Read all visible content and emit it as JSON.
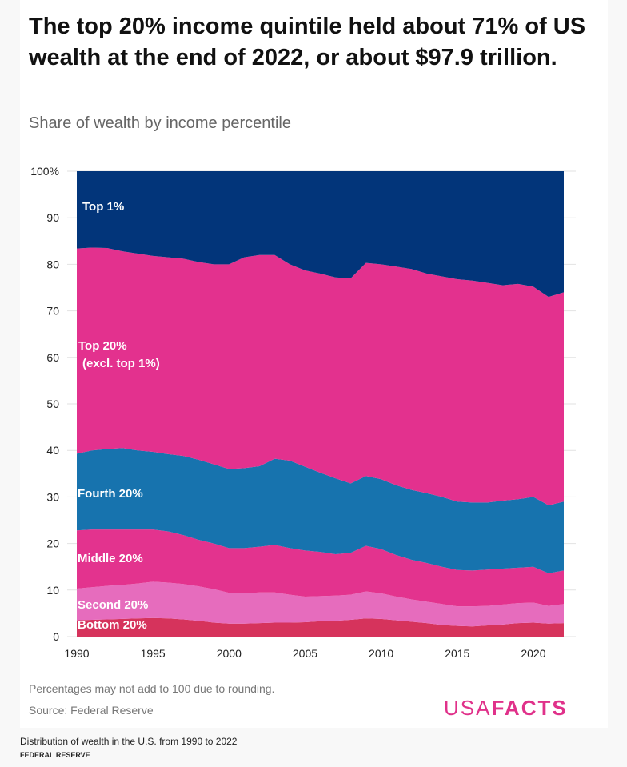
{
  "title": "The top 20% income quintile held about 71% of US wealth at the end of 2022, or about $97.9 trillion.",
  "subtitle": "Share of wealth by income percentile",
  "note": "Percentages may not add to 100 due to rounding.",
  "source": "Source: Federal Reserve",
  "logo": {
    "light": "USA",
    "bold": "FACTS"
  },
  "caption": "Distribution of wealth in the U.S. from 1990 to 2022",
  "credit": "FEDERAL RESERVE",
  "chart_data": {
    "type": "area",
    "stacked": true,
    "title": "Share of wealth by income percentile",
    "ylim": [
      0,
      100
    ],
    "xlim": [
      1990,
      2022
    ],
    "yticks": [
      "0",
      "10",
      "20",
      "30",
      "40",
      "50",
      "60",
      "70",
      "80",
      "90",
      "100%"
    ],
    "xticks": [
      "1990",
      "1995",
      "2000",
      "2005",
      "2010",
      "2015",
      "2020"
    ],
    "grid": "horizontal",
    "x": [
      1990,
      1991,
      1992,
      1993,
      1994,
      1995,
      1996,
      1997,
      1998,
      1999,
      2000,
      2001,
      2002,
      2003,
      2004,
      2005,
      2006,
      2007,
      2008,
      2009,
      2010,
      2011,
      2012,
      2013,
      2014,
      2015,
      2016,
      2017,
      2018,
      2019,
      2020,
      2021,
      2022
    ],
    "series": [
      {
        "name": "Bottom 20%",
        "color": "#d6335c",
        "values": [
          3.5,
          3.6,
          3.7,
          3.8,
          3.9,
          4.0,
          3.9,
          3.7,
          3.4,
          3.0,
          2.8,
          2.8,
          2.9,
          3.0,
          3.0,
          3.1,
          3.3,
          3.4,
          3.6,
          3.9,
          3.8,
          3.5,
          3.2,
          2.9,
          2.5,
          2.3,
          2.2,
          2.4,
          2.6,
          2.9,
          3.0,
          2.8,
          2.9
        ]
      },
      {
        "name": "Second 20%",
        "color": "#e66cbd",
        "values": [
          6.8,
          7.0,
          7.2,
          7.3,
          7.5,
          7.8,
          7.7,
          7.6,
          7.4,
          7.2,
          6.6,
          6.5,
          6.6,
          6.5,
          6.0,
          5.5,
          5.4,
          5.4,
          5.4,
          5.8,
          5.5,
          5.1,
          4.8,
          4.6,
          4.5,
          4.2,
          4.3,
          4.2,
          4.3,
          4.3,
          4.3,
          3.8,
          4.1
        ]
      },
      {
        "name": "Middle 20%",
        "color": "#e3338e",
        "values": [
          12.5,
          12.4,
          12.1,
          11.9,
          11.6,
          11.2,
          11.0,
          10.5,
          10.0,
          9.8,
          9.6,
          9.7,
          9.8,
          10.2,
          10.0,
          9.9,
          9.5,
          8.9,
          9.0,
          9.8,
          9.5,
          8.9,
          8.5,
          8.3,
          8.0,
          7.8,
          7.7,
          7.8,
          7.7,
          7.6,
          7.7,
          7.0,
          7.2
        ]
      },
      {
        "name": "Fourth 20%",
        "color": "#1773ae",
        "values": [
          16.5,
          17.0,
          17.3,
          17.5,
          17.0,
          16.7,
          16.6,
          17.0,
          17.2,
          17.0,
          17.0,
          17.2,
          17.3,
          18.5,
          18.8,
          18.0,
          17.0,
          16.3,
          14.9,
          15.0,
          15.0,
          15.0,
          15.0,
          15.0,
          15.0,
          14.7,
          14.6,
          14.4,
          14.6,
          14.7,
          15.0,
          14.6,
          14.8
        ]
      },
      {
        "name": "Top 20% (excl. top 1%)",
        "line1": "Top 20%",
        "line2": "(excl. top 1%)",
        "color": "#e3318e",
        "values": [
          44.1,
          43.6,
          43.2,
          42.3,
          42.3,
          42.1,
          42.3,
          42.4,
          42.5,
          43.0,
          44.0,
          45.3,
          45.4,
          43.8,
          42.2,
          42.2,
          42.8,
          43.2,
          44.1,
          45.8,
          46.2,
          47.0,
          47.5,
          47.2,
          47.4,
          47.8,
          47.7,
          47.2,
          46.3,
          46.3,
          45.2,
          44.8,
          45.0
        ]
      },
      {
        "name": "Top 1%",
        "color": "#02357a",
        "values": [
          16.6,
          16.4,
          16.5,
          17.2,
          17.7,
          18.2,
          18.5,
          18.8,
          19.5,
          20.0,
          20.0,
          18.5,
          18.0,
          18.0,
          20.0,
          21.3,
          22.0,
          22.8,
          23.0,
          19.7,
          20.0,
          20.5,
          21.0,
          22.0,
          22.6,
          23.2,
          23.5,
          24.0,
          24.5,
          24.2,
          24.8,
          27.0,
          26.0
        ]
      }
    ]
  }
}
